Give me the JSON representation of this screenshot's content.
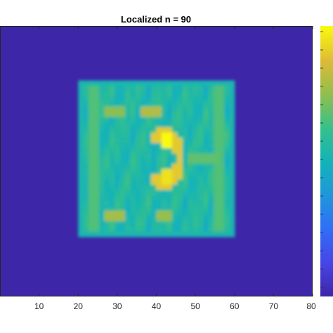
{
  "chart_data": {
    "type": "heatmap",
    "title": "Localized n = 90",
    "xlabel": "",
    "ylabel": "",
    "xlim": [
      0,
      80
    ],
    "x_ticks": [
      "10",
      "20",
      "30",
      "40",
      "50",
      "60",
      "70",
      "80"
    ],
    "colormap": "parula",
    "background_value": 0,
    "active_region": {
      "x_range": [
        20,
        60
      ]
    },
    "colorbar": {
      "position": "right",
      "tick_labels": []
    },
    "grid": false,
    "feature_levels": {
      "rim": 0.62,
      "interior_base": 0.55,
      "central_bright_arc": 0.9,
      "arc_peaks": 1.0,
      "side_bands": 0.66
    }
  },
  "colors": {
    "background": "#ffffff",
    "axis": "#262626",
    "plot_low": "#3d26a8",
    "plot_high": "#f9fb0e"
  }
}
